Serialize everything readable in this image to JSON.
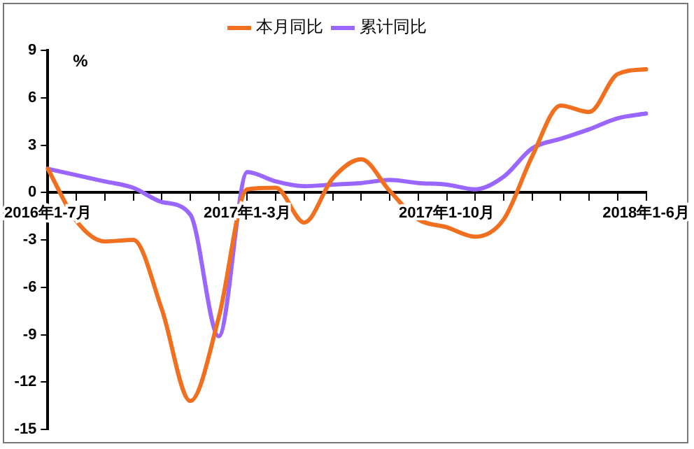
{
  "chart_data": {
    "type": "line",
    "ylabel": "%",
    "categories": [
      "2016年1-7月",
      null,
      null,
      null,
      null,
      null,
      null,
      "2017年1-3月",
      null,
      null,
      null,
      null,
      null,
      null,
      "2017年1-10月",
      null,
      null,
      null,
      null,
      null,
      null,
      "2018年1-6月"
    ],
    "series": [
      {
        "name": "本月同比",
        "color": "#f07020",
        "values": [
          1.5,
          -1.8,
          -3.1,
          -3.0,
          -7.4,
          -13.2,
          -7.9,
          0.2,
          0.3,
          -1.9,
          0.9,
          2.1,
          0.1,
          -1.7,
          -2.2,
          -2.8,
          -1.7,
          2.3,
          5.5,
          5.1,
          7.5,
          7.8
        ]
      },
      {
        "name": "累计同比",
        "color": "#9966ff",
        "values": [
          1.5,
          1.1,
          0.7,
          0.3,
          -0.6,
          -1.4,
          -9.1,
          1.3,
          0.7,
          0.4,
          0.5,
          0.6,
          0.8,
          0.6,
          0.5,
          0.2,
          1.0,
          2.8,
          3.4,
          4.0,
          4.7,
          5.0
        ]
      }
    ],
    "ylim": [
      -15,
      9
    ],
    "yticks": [
      9,
      6,
      3,
      0,
      -3,
      -6,
      -9,
      -12,
      -15
    ],
    "grid": false,
    "legend": "top",
    "marker": "none",
    "line_style": "solid"
  }
}
